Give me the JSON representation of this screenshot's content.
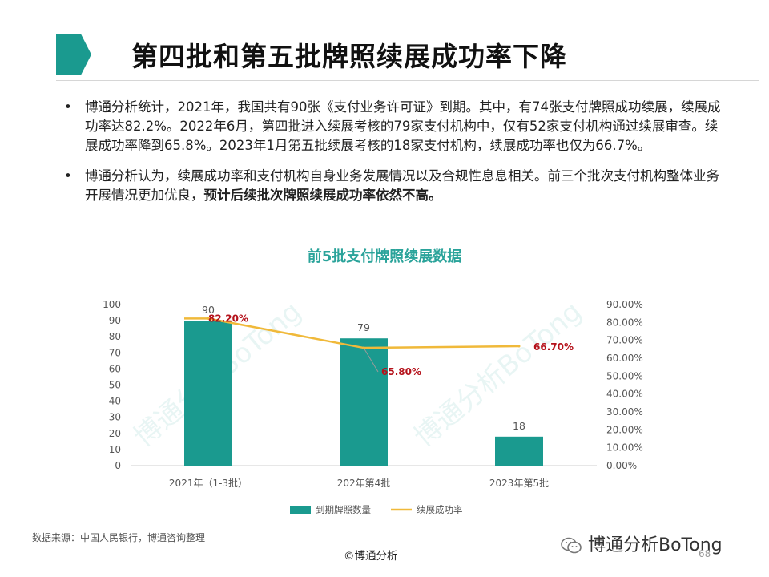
{
  "slide": {
    "title": "第四批和第五批牌照续展成功率下降",
    "bullets": [
      {
        "text": "博通分析统计，2021年，我国共有90张《支付业务许可证》到期。其中，有74张支付牌照成功续展，续展成功率达82.2%。2022年6月，第四批进入续展考核的79家支付机构中，仅有52家支付机构通过续展审查。续展成功率降到65.8%。2023年1月第五批续展考核的18家支付机构，续展成功率也仅为66.7%。",
        "bold": ""
      },
      {
        "text": "博通分析认为，续展成功率和支付机构自身业务发展情况以及合规性息息相关。前三个批次支付机构整体业务开展情况更加优良，",
        "bold": "预计后续批次牌照续展成功率依然不高。"
      }
    ],
    "source": "数据来源：中国人民银行，博通咨询整理",
    "copyright": "©博通分析",
    "wechat": "博通分析BoTong",
    "page_number": "68",
    "watermark": "博通分析BoTong"
  },
  "chart_data": {
    "type": "bar",
    "title": "前5批支付牌照续展数据",
    "categories": [
      "2021年（1-3批）",
      "202年第4批",
      "2023年第5批"
    ],
    "series": [
      {
        "name": "到期牌照数量",
        "type": "bar",
        "axis": "left",
        "values": [
          90,
          79,
          18
        ],
        "labels": [
          "90",
          "79",
          "18"
        ],
        "color": "#1a9a8f"
      },
      {
        "name": "续展成功率",
        "type": "line",
        "axis": "right",
        "values": [
          82.2,
          65.8,
          66.7
        ],
        "labels": [
          "82.20%",
          "65.80%",
          "66.70%"
        ],
        "color": "#f0b93a",
        "label_color": "#b5121b"
      }
    ],
    "y_left": {
      "min": 0,
      "max": 100,
      "ticks": [
        "0",
        "10",
        "20",
        "30",
        "40",
        "50",
        "60",
        "70",
        "80",
        "90",
        "100"
      ]
    },
    "y_right": {
      "min": 0,
      "max": 90,
      "ticks": [
        "0.00%",
        "10.00%",
        "20.00%",
        "30.00%",
        "40.00%",
        "50.00%",
        "60.00%",
        "70.00%",
        "80.00%",
        "90.00%"
      ]
    },
    "grid": false,
    "legend": "bottom"
  }
}
